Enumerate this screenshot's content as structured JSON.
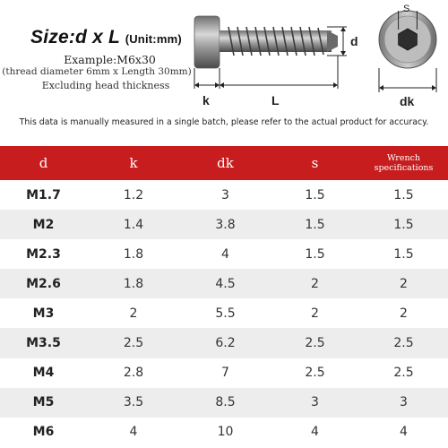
{
  "header": {
    "size_title": "Size:d x L",
    "size_unit": "(Unit:mm)",
    "example": "Example:M6x30",
    "thread_note": "(thread diameter 6mm x Length 30mm)",
    "exclude_note": "Excluding head thickness"
  },
  "diagram": {
    "label_d": "d",
    "label_k": "k",
    "label_L": "L",
    "label_dk": "dk",
    "label_s": "S"
  },
  "note": "This data is manually measured in a single batch, please refer to the actual product for accuracy.",
  "table": {
    "headers": [
      "d",
      "k",
      "dk",
      "s",
      "Wrench",
      "specifications"
    ],
    "rows": [
      [
        "M1.7",
        "1.2",
        "3",
        "1.5",
        "1.5"
      ],
      [
        "M2",
        "1.4",
        "3.8",
        "1.5",
        "1.5"
      ],
      [
        "M2.3",
        "1.8",
        "4",
        "1.5",
        "1.5"
      ],
      [
        "M2.6",
        "1.8",
        "4.5",
        "2",
        "2"
      ],
      [
        "M3",
        "2",
        "5.5",
        "2",
        "2"
      ],
      [
        "M3.5",
        "2.5",
        "6.2",
        "2.5",
        "2.5"
      ],
      [
        "M4",
        "2.8",
        "7",
        "2.5",
        "2.5"
      ],
      [
        "M5",
        "3.5",
        "8.5",
        "3",
        "3"
      ],
      [
        "M6",
        "4",
        "10",
        "4",
        "4"
      ]
    ]
  },
  "colors": {
    "header_red": "#c81d1f",
    "stripe": "#ededed"
  }
}
